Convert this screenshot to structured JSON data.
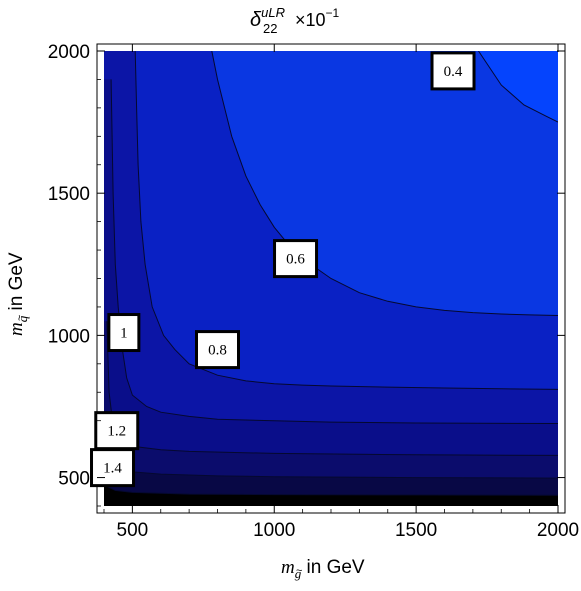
{
  "chart_data": {
    "type": "contour",
    "title": {
      "symbol": "δ",
      "subscript": "22",
      "superscript": "uLR",
      "factor": "×10",
      "factor_exponent": "−1"
    },
    "xlabel": {
      "main": "m",
      "subscript": "g",
      "accent": "~",
      "suffix": " in GeV"
    },
    "ylabel": {
      "main": "m",
      "subscript": "q",
      "accent": "~",
      "suffix": " in GeV"
    },
    "xlim": [
      400,
      2000
    ],
    "ylim": [
      400,
      2000
    ],
    "x_ticks": [
      500,
      1000,
      1500,
      2000
    ],
    "y_ticks": [
      500,
      1000,
      1500,
      2000
    ],
    "contour_labels": [
      {
        "text": "0.4",
        "x": 1630,
        "y": 1930
      },
      {
        "text": "0.6",
        "x": 1075,
        "y": 1270
      },
      {
        "text": "0.8",
        "x": 800,
        "y": 950
      },
      {
        "text": "1",
        "x": 470,
        "y": 1010
      },
      {
        "text": "1.2",
        "x": 445,
        "y": 665
      },
      {
        "text": "1.4",
        "x": 430,
        "y": 535
      }
    ],
    "contours": [
      {
        "level": 0.4,
        "points": [
          [
            1720,
            2000
          ],
          [
            1800,
            1880
          ],
          [
            1880,
            1810
          ],
          [
            1960,
            1770
          ],
          [
            2000,
            1750
          ]
        ]
      },
      {
        "level": 0.6,
        "points": [
          [
            780,
            2000
          ],
          [
            800,
            1900
          ],
          [
            850,
            1700
          ],
          [
            900,
            1560
          ],
          [
            950,
            1460
          ],
          [
            1000,
            1380
          ],
          [
            1050,
            1320
          ],
          [
            1100,
            1270
          ],
          [
            1200,
            1200
          ],
          [
            1300,
            1150
          ],
          [
            1400,
            1120
          ],
          [
            1500,
            1100
          ],
          [
            1600,
            1088
          ],
          [
            1700,
            1080
          ],
          [
            1800,
            1075
          ],
          [
            1900,
            1072
          ],
          [
            2000,
            1070
          ]
        ]
      },
      {
        "level": 0.8,
        "points": [
          [
            510,
            2000
          ],
          [
            515,
            1800
          ],
          [
            520,
            1600
          ],
          [
            530,
            1400
          ],
          [
            545,
            1250
          ],
          [
            570,
            1100
          ],
          [
            610,
            1000
          ],
          [
            650,
            950
          ],
          [
            700,
            900
          ],
          [
            800,
            860
          ],
          [
            900,
            840
          ],
          [
            1000,
            830
          ],
          [
            1100,
            825
          ],
          [
            1200,
            822
          ],
          [
            1400,
            818
          ],
          [
            1600,
            815
          ],
          [
            1800,
            812
          ],
          [
            2000,
            810
          ]
        ]
      },
      {
        "level": 1.0,
        "points": [
          [
            425,
            1900
          ],
          [
            432,
            1500
          ],
          [
            440,
            1250
          ],
          [
            450,
            1100
          ],
          [
            465,
            950
          ],
          [
            480,
            850
          ],
          [
            500,
            790
          ],
          [
            550,
            750
          ],
          [
            600,
            730
          ],
          [
            700,
            715
          ],
          [
            800,
            705
          ],
          [
            1000,
            700
          ],
          [
            1200,
            695
          ],
          [
            1500,
            692
          ],
          [
            2000,
            690
          ]
        ]
      },
      {
        "level": 1.2,
        "points": [
          [
            410,
            1050
          ],
          [
            418,
            800
          ],
          [
            430,
            700
          ],
          [
            450,
            640
          ],
          [
            500,
            610
          ],
          [
            600,
            598
          ],
          [
            700,
            592
          ],
          [
            1000,
            585
          ],
          [
            1500,
            580
          ],
          [
            2000,
            578
          ]
        ]
      },
      {
        "level": 1.4,
        "points": [
          [
            408,
            620
          ],
          [
            420,
            560
          ],
          [
            440,
            535
          ],
          [
            500,
            520
          ],
          [
            600,
            512
          ],
          [
            800,
            506
          ],
          [
            1000,
            503
          ],
          [
            1500,
            500
          ],
          [
            2000,
            498
          ]
        ]
      },
      {
        "level": 1.6,
        "points": [
          [
            408,
            470
          ],
          [
            440,
            455
          ],
          [
            500,
            448
          ],
          [
            700,
            442
          ],
          [
            1000,
            440
          ],
          [
            1500,
            439
          ],
          [
            2000,
            438
          ]
        ]
      }
    ],
    "region_colors": [
      "#0a0e8a",
      "#0a0e8a",
      "#0c15a6",
      "#0a21c4",
      "#0a37e2",
      "#0244fb",
      "#062cf8",
      "#0b0c6c",
      "#080845",
      "#000000"
    ],
    "grid": false
  }
}
